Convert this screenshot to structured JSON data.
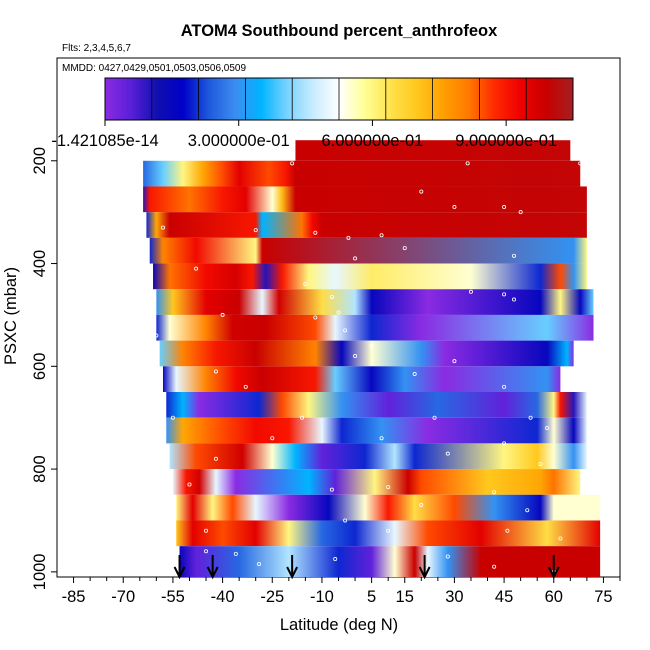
{
  "chart_data": {
    "type": "heatmap",
    "title": "ATOM4 Southbound percent_anthrofeox",
    "subtitle": "Flts: 2,3,4,5,6,7",
    "annotation": "MMDD: 0427,0429,0501,0503,0506,0509",
    "xlabel": "Latitude (deg N)",
    "ylabel": "PSXC (mbar)",
    "xlim": [
      -90,
      80
    ],
    "ylim": [
      1010,
      0
    ],
    "x_ticks": [
      -85,
      -70,
      -55,
      -40,
      -25,
      -10,
      5,
      15,
      30,
      45,
      60,
      75
    ],
    "y_ticks": [
      200,
      400,
      600,
      800,
      1000
    ],
    "colorbar": {
      "min": 0,
      "max": 1.05,
      "tick_values": [
        0,
        0.3,
        0.6,
        0.9
      ],
      "tick_labels": [
        "-1.421085e-14",
        "3.000000e-01",
        "6.000000e-01",
        "9.000000e-01"
      ],
      "colors": [
        "#8a2be2",
        "#5a1fd9",
        "#1010b0",
        "#0000c8",
        "#1e5adc",
        "#3c8cf0",
        "#00b4ff",
        "#78d2ff",
        "#c8ecff",
        "#ffffff",
        "#ffff96",
        "#ffe14b",
        "#ffc81e",
        "#ffa000",
        "#ff7800",
        "#ff2800",
        "#ee0000",
        "#c80000",
        "#a52020"
      ]
    },
    "bands": [
      {
        "p_top": 160,
        "p_bot": 200,
        "segments": [
          [
            -18,
            0.99
          ],
          [
            65,
            1.0
          ]
        ]
      },
      {
        "p_top": 200,
        "p_bot": 250,
        "segments": [
          [
            -64,
            0.25
          ],
          [
            -58,
            0.4
          ],
          [
            -52,
            0.6
          ],
          [
            -46,
            0.75
          ],
          [
            -40,
            0.85
          ],
          [
            -35,
            0.95
          ],
          [
            -26,
            0.85
          ],
          [
            -21,
            0.9
          ],
          [
            -18,
            0.99
          ],
          [
            68,
            1.0
          ]
        ]
      },
      {
        "p_top": 250,
        "p_bot": 300,
        "segments": [
          [
            -64,
            0.1
          ],
          [
            -62,
            0.9
          ],
          [
            -50,
            0.82
          ],
          [
            -40,
            0.9
          ],
          [
            -33,
            0.95
          ],
          [
            -25,
            0.55
          ],
          [
            -22,
            0.72
          ],
          [
            -18,
            0.99
          ],
          [
            70,
            1.0
          ]
        ]
      },
      {
        "p_top": 300,
        "p_bot": 350,
        "segments": [
          [
            -63,
            0.2
          ],
          [
            -60,
            0.75
          ],
          [
            -56,
            0.99
          ],
          [
            -30,
            0.9
          ],
          [
            -28,
            0.35
          ],
          [
            -16,
            0.82
          ],
          [
            -13,
            0.92
          ],
          [
            -10,
            0.99
          ],
          [
            70,
            1.0
          ]
        ]
      },
      {
        "p_top": 350,
        "p_bot": 400,
        "segments": [
          [
            -62,
            0.2
          ],
          [
            -58,
            0.8
          ],
          [
            -48,
            0.92
          ],
          [
            -30,
            0.6
          ],
          [
            -28,
            0.99
          ],
          [
            66,
            0.3
          ],
          [
            70,
            0.6
          ]
        ]
      },
      {
        "p_top": 400,
        "p_bot": 450,
        "segments": [
          [
            -61,
            0.15
          ],
          [
            -56,
            0.82
          ],
          [
            -45,
            0.92
          ],
          [
            -36,
            0.97
          ],
          [
            -31,
            0.9
          ],
          [
            -27,
            0.1
          ],
          [
            -22,
            0.9
          ],
          [
            -14,
            0.6
          ],
          [
            -6,
            0.5
          ],
          [
            5,
            0.62
          ],
          [
            35,
            0.55
          ],
          [
            56,
            0.2
          ],
          [
            62,
            0.85
          ],
          [
            66,
            0.3
          ],
          [
            70,
            0.6
          ]
        ]
      },
      {
        "p_top": 450,
        "p_bot": 500,
        "segments": [
          [
            -60,
            0.3
          ],
          [
            -55,
            0.7
          ],
          [
            -45,
            0.95
          ],
          [
            -35,
            0.99
          ],
          [
            -28,
            0.5
          ],
          [
            -23,
            0.98
          ],
          [
            -10,
            0.65
          ],
          [
            0,
            0.45
          ],
          [
            5,
            0.15
          ],
          [
            22,
            0.0
          ],
          [
            56,
            0.15
          ],
          [
            62,
            0.6
          ],
          [
            68,
            0.15
          ],
          [
            72,
            0.4
          ]
        ]
      },
      {
        "p_top": 500,
        "p_bot": 550,
        "segments": [
          [
            -60,
            0.2
          ],
          [
            -56,
            0.55
          ],
          [
            -45,
            0.8
          ],
          [
            -37,
            0.98
          ],
          [
            -27,
            0.99
          ],
          [
            -12,
            0.85
          ],
          [
            -6,
            0.5
          ],
          [
            5,
            0.2
          ],
          [
            20,
            0.0
          ],
          [
            58,
            0.4
          ],
          [
            72,
            0.0
          ]
        ]
      },
      {
        "p_top": 550,
        "p_bot": 600,
        "segments": [
          [
            -59,
            0.4
          ],
          [
            -52,
            0.8
          ],
          [
            -42,
            0.9
          ],
          [
            -30,
            0.99
          ],
          [
            -12,
            0.8
          ],
          [
            -4,
            0.15
          ],
          [
            5,
            0.55
          ],
          [
            20,
            0.3
          ],
          [
            27,
            0.0
          ],
          [
            58,
            0.15
          ],
          [
            64,
            0.35
          ],
          [
            66,
            0.0
          ]
        ]
      },
      {
        "p_top": 600,
        "p_bot": 650,
        "segments": [
          [
            -58,
            0.15
          ],
          [
            -54,
            0.5
          ],
          [
            -45,
            0.8
          ],
          [
            -36,
            0.92
          ],
          [
            -28,
            0.99
          ],
          [
            -12,
            0.9
          ],
          [
            -6,
            0.4
          ],
          [
            5,
            0.15
          ],
          [
            15,
            0.3
          ],
          [
            27,
            0.0
          ],
          [
            58,
            0.3
          ],
          [
            62,
            0.0
          ]
        ]
      },
      {
        "p_top": 650,
        "p_bot": 700,
        "segments": [
          [
            -57,
            0.2
          ],
          [
            -52,
            0.35
          ],
          [
            -47,
            0.0
          ],
          [
            -29,
            0.2
          ],
          [
            -22,
            0.85
          ],
          [
            -14,
            0.6
          ],
          [
            -4,
            0.3
          ],
          [
            10,
            0.05
          ],
          [
            25,
            0.25
          ],
          [
            45,
            0.05
          ],
          [
            55,
            0.25
          ],
          [
            60,
            0.6
          ],
          [
            62,
            0.9
          ],
          [
            66,
            0.1
          ],
          [
            70,
            0.5
          ]
        ]
      },
      {
        "p_top": 700,
        "p_bot": 750,
        "segments": [
          [
            -57,
            0.3
          ],
          [
            -52,
            0.75
          ],
          [
            -40,
            0.85
          ],
          [
            -30,
            0.92
          ],
          [
            -20,
            0.9
          ],
          [
            -10,
            0.5
          ],
          [
            -4,
            0.2
          ],
          [
            8,
            0.3
          ],
          [
            22,
            0.0
          ],
          [
            55,
            0.2
          ],
          [
            60,
            0.55
          ],
          [
            66,
            0.15
          ],
          [
            70,
            0.5
          ]
        ]
      },
      {
        "p_top": 750,
        "p_bot": 800,
        "segments": [
          [
            -56,
            0.45
          ],
          [
            -48,
            0.85
          ],
          [
            -34,
            0.98
          ],
          [
            -25,
            0.55
          ],
          [
            -18,
            0.35
          ],
          [
            -10,
            0.05
          ],
          [
            3,
            0.2
          ],
          [
            12,
            0.45
          ],
          [
            18,
            0.2
          ],
          [
            45,
            0.6
          ],
          [
            55,
            0.7
          ],
          [
            60,
            0.55
          ],
          [
            66,
            0.3
          ],
          [
            70,
            0.5
          ]
        ]
      },
      {
        "p_top": 800,
        "p_bot": 850,
        "segments": [
          [
            -55,
            0.5
          ],
          [
            -51,
            0.9
          ],
          [
            -47,
            0.98
          ],
          [
            -42,
            0.5
          ],
          [
            -36,
            0.0
          ],
          [
            -14,
            0.35
          ],
          [
            -6,
            0.05
          ],
          [
            6,
            0.6
          ],
          [
            16,
            0.99
          ],
          [
            20,
            0.85
          ],
          [
            40,
            0.7
          ],
          [
            56,
            0.75
          ],
          [
            60,
            0.82
          ],
          [
            68,
            0.6
          ]
        ]
      },
      {
        "p_top": 850,
        "p_bot": 900,
        "segments": [
          [
            -54,
            0.6
          ],
          [
            -49,
            0.95
          ],
          [
            -43,
            0.6
          ],
          [
            -37,
            0.85
          ],
          [
            -30,
            0.5
          ],
          [
            -20,
            0.0
          ],
          [
            -8,
            0.15
          ],
          [
            3,
            0.55
          ],
          [
            10,
            0.9
          ],
          [
            18,
            0.65
          ],
          [
            30,
            0.85
          ],
          [
            42,
            0.3
          ],
          [
            56,
            0.15
          ],
          [
            60,
            0.55
          ],
          [
            74,
            0.55
          ]
        ]
      },
      {
        "p_top": 900,
        "p_bot": 950,
        "segments": [
          [
            -54,
            0.7
          ],
          [
            -49,
            0.95
          ],
          [
            -40,
            0.85
          ],
          [
            -30,
            0.95
          ],
          [
            -20,
            0.6
          ],
          [
            -10,
            0.25
          ],
          [
            0,
            0.2
          ],
          [
            12,
            0.5
          ],
          [
            22,
            0.85
          ],
          [
            38,
            0.95
          ],
          [
            58,
            0.65
          ],
          [
            74,
            0.95
          ]
        ]
      },
      {
        "p_top": 950,
        "p_bot": 1010,
        "segments": [
          [
            -53,
            0.15
          ],
          [
            -48,
            0.05
          ],
          [
            -35,
            0.25
          ],
          [
            -20,
            0.45
          ],
          [
            -5,
            0.2
          ],
          [
            5,
            0.05
          ],
          [
            12,
            0.55
          ],
          [
            18,
            0.99
          ],
          [
            22,
            0.5
          ],
          [
            28,
            0.3
          ],
          [
            38,
            0.99
          ],
          [
            74,
            0.99
          ]
        ]
      }
    ],
    "bands_note": "each band lists [latitude_deg_N, percent_anthrofeox] gradient stops",
    "flight_markers": [
      -53,
      -43,
      -19,
      21,
      60
    ],
    "sample_points": [
      [
        -19,
        205
      ],
      [
        34,
        205
      ],
      [
        68,
        205
      ],
      [
        20,
        260
      ],
      [
        30,
        290
      ],
      [
        45,
        290
      ],
      [
        50,
        300
      ],
      [
        -58,
        330
      ],
      [
        -30,
        335
      ],
      [
        -12,
        340
      ],
      [
        -2,
        350
      ],
      [
        8,
        345
      ],
      [
        15,
        370
      ],
      [
        48,
        385
      ],
      [
        -48,
        410
      ],
      [
        0,
        390
      ],
      [
        -15,
        440
      ],
      [
        -7,
        465
      ],
      [
        35,
        455
      ],
      [
        45,
        460
      ],
      [
        48,
        470
      ],
      [
        -40,
        500
      ],
      [
        -5,
        495
      ],
      [
        -12,
        505
      ],
      [
        -60,
        540
      ],
      [
        -3,
        530
      ],
      [
        5,
        560
      ],
      [
        0,
        580
      ],
      [
        30,
        590
      ],
      [
        -42,
        610
      ],
      [
        18,
        615
      ],
      [
        -33,
        640
      ],
      [
        45,
        640
      ],
      [
        -55,
        700
      ],
      [
        -16,
        700
      ],
      [
        24,
        700
      ],
      [
        53,
        700
      ],
      [
        58,
        720
      ],
      [
        -25,
        740
      ],
      [
        8,
        740
      ],
      [
        45,
        750
      ],
      [
        -42,
        780
      ],
      [
        28,
        770
      ],
      [
        56,
        790
      ],
      [
        -50,
        830
      ],
      [
        -7,
        840
      ],
      [
        10,
        835
      ],
      [
        42,
        845
      ],
      [
        -3,
        900
      ],
      [
        20,
        870
      ],
      [
        52,
        880
      ],
      [
        -45,
        920
      ],
      [
        10,
        920
      ],
      [
        46,
        920
      ],
      [
        62,
        935
      ],
      [
        -45,
        960
      ],
      [
        -36,
        965
      ],
      [
        -6,
        975
      ],
      [
        28,
        970
      ],
      [
        -29,
        985
      ],
      [
        42,
        990
      ],
      [
        60,
        1000
      ]
    ]
  }
}
